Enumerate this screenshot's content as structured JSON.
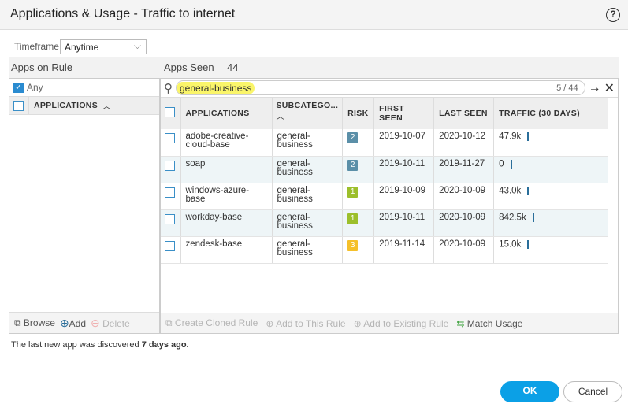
{
  "dialog": {
    "title": "Applications & Usage - Traffic to internet",
    "help_icon": "question-circle-icon"
  },
  "timeframe": {
    "label": "Timeframe",
    "value": "Anytime"
  },
  "apps_on_rule": {
    "title": "Apps on Rule",
    "any_label": "Any",
    "any_checked": true,
    "column": "APPLICATIONS",
    "toolbar": {
      "browse": "Browse",
      "add": "Add",
      "delete": "Delete"
    }
  },
  "apps_seen": {
    "title": "Apps Seen",
    "count": "44",
    "search": {
      "value": "general-business",
      "match_count": "5 / 44"
    },
    "columns": [
      "APPLICATIONS",
      "SUBCATEGO...",
      "RISK",
      "FIRST SEEN",
      "LAST SEEN",
      "TRAFFIC (30 DAYS)"
    ],
    "rows": [
      {
        "app": "adobe-creative-cloud-base",
        "subcategory": "general-business",
        "risk": "2",
        "first_seen": "2019-10-07",
        "last_seen": "2020-10-12",
        "traffic": "47.9k"
      },
      {
        "app": "soap",
        "subcategory": "general-business",
        "risk": "2",
        "first_seen": "2019-10-11",
        "last_seen": "2019-11-27",
        "traffic": "0"
      },
      {
        "app": "windows-azure-base",
        "subcategory": "general-business",
        "risk": "1",
        "first_seen": "2019-10-09",
        "last_seen": "2020-10-09",
        "traffic": "43.0k"
      },
      {
        "app": "workday-base",
        "subcategory": "general-business",
        "risk": "1",
        "first_seen": "2019-10-11",
        "last_seen": "2020-10-09",
        "traffic": "842.5k"
      },
      {
        "app": "zendesk-base",
        "subcategory": "general-business",
        "risk": "3",
        "first_seen": "2019-11-14",
        "last_seen": "2020-10-09",
        "traffic": "15.0k"
      }
    ],
    "toolbar": {
      "clone": "Create Cloned Rule",
      "add_this": "Add to This Rule",
      "add_existing": "Add to Existing Rule",
      "match": "Match Usage"
    }
  },
  "footer": {
    "text": "The last new app was discovered ",
    "bold": "7 days ago."
  },
  "buttons": {
    "ok": "OK",
    "cancel": "Cancel"
  },
  "colors": {
    "risk1": "#9cbf2b",
    "risk2": "#5b8fa8",
    "risk3": "#f5c02a",
    "accent": "#0ba0e6",
    "highlight": "#faf56a"
  }
}
